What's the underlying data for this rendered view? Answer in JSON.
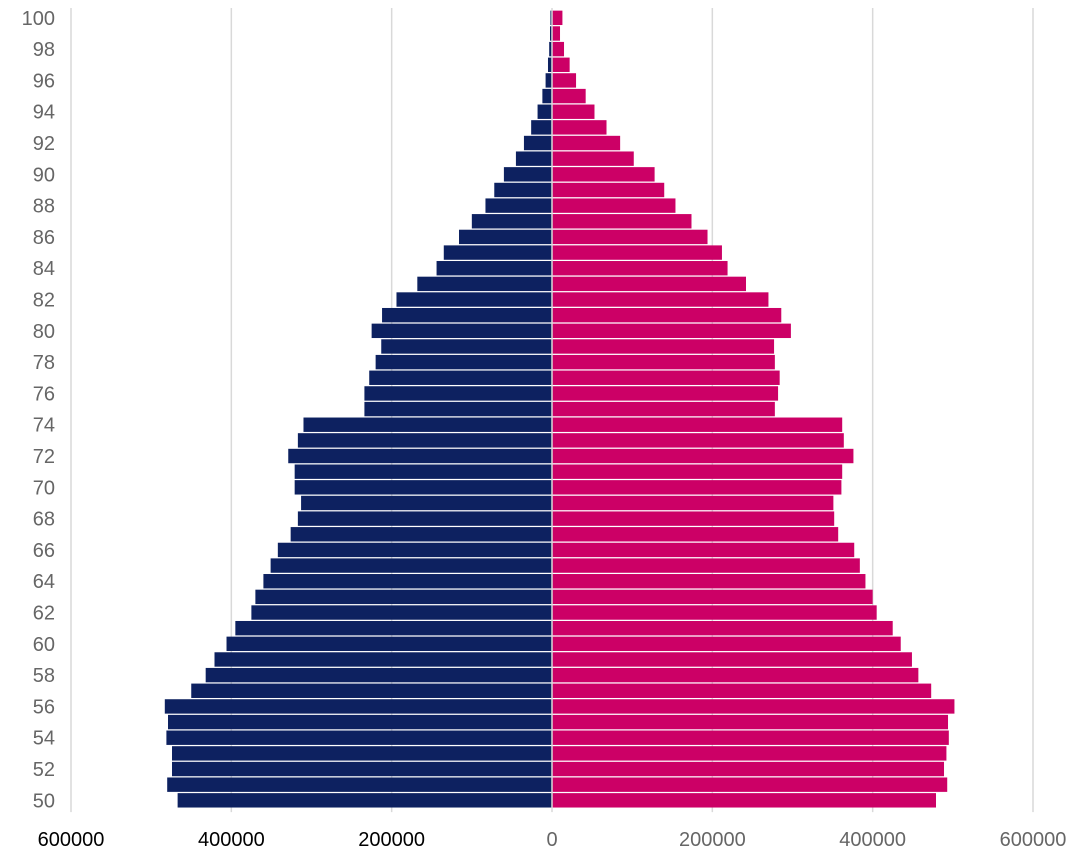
{
  "chart_data": {
    "type": "bar",
    "orientation": "horizontal",
    "layout": "population-pyramid",
    "title": "",
    "xlabel": "",
    "ylabel": "",
    "grid": true,
    "legend": "none",
    "xlim": [
      -600000,
      600000
    ],
    "x_ticks": [
      -600000,
      -400000,
      -200000,
      0,
      200000,
      400000,
      600000
    ],
    "x_tick_labels": [
      "600000",
      "400000",
      "200000",
      "0",
      "200000",
      "400000",
      "600000"
    ],
    "y_tick_labels": [
      "100",
      "98",
      "96",
      "94",
      "92",
      "90",
      "88",
      "86",
      "84",
      "82",
      "80",
      "78",
      "76",
      "74",
      "72",
      "70",
      "68",
      "66",
      "64",
      "62",
      "60",
      "58",
      "56",
      "54",
      "52",
      "50"
    ],
    "categories": [
      100,
      99,
      98,
      97,
      96,
      95,
      94,
      93,
      92,
      91,
      90,
      89,
      88,
      87,
      86,
      85,
      84,
      83,
      82,
      81,
      80,
      79,
      78,
      77,
      76,
      75,
      74,
      73,
      72,
      71,
      70,
      69,
      68,
      67,
      66,
      65,
      64,
      63,
      62,
      61,
      60,
      59,
      58,
      57,
      56,
      55,
      54,
      53,
      52,
      51,
      50
    ],
    "series": [
      {
        "side": "left",
        "color": "#0d2160",
        "values": [
          2000,
          2500,
          3500,
          5000,
          8000,
          12000,
          18000,
          26000,
          35000,
          45000,
          60000,
          72000,
          83000,
          100000,
          116000,
          135000,
          144000,
          168000,
          194000,
          212000,
          225000,
          213000,
          220000,
          228000,
          234000,
          234000,
          310000,
          317000,
          329000,
          321000,
          321000,
          313000,
          317000,
          326000,
          342000,
          351000,
          360000,
          370000,
          375000,
          395000,
          406000,
          421000,
          432000,
          450000,
          483000,
          479000,
          481000,
          474000,
          474000,
          480000,
          467000
        ]
      },
      {
        "side": "right",
        "color": "#cc0066",
        "values": [
          13000,
          10000,
          15000,
          22000,
          30000,
          42000,
          53000,
          68000,
          85000,
          102000,
          128000,
          140000,
          154000,
          174000,
          194000,
          212000,
          219000,
          242000,
          270000,
          286000,
          298000,
          277000,
          278000,
          284000,
          282000,
          278000,
          362000,
          364000,
          376000,
          362000,
          361000,
          351000,
          352000,
          357000,
          377000,
          384000,
          391000,
          400000,
          405000,
          425000,
          435000,
          449000,
          457000,
          473000,
          502000,
          494000,
          495000,
          492000,
          489000,
          493000,
          479000
        ]
      }
    ]
  }
}
